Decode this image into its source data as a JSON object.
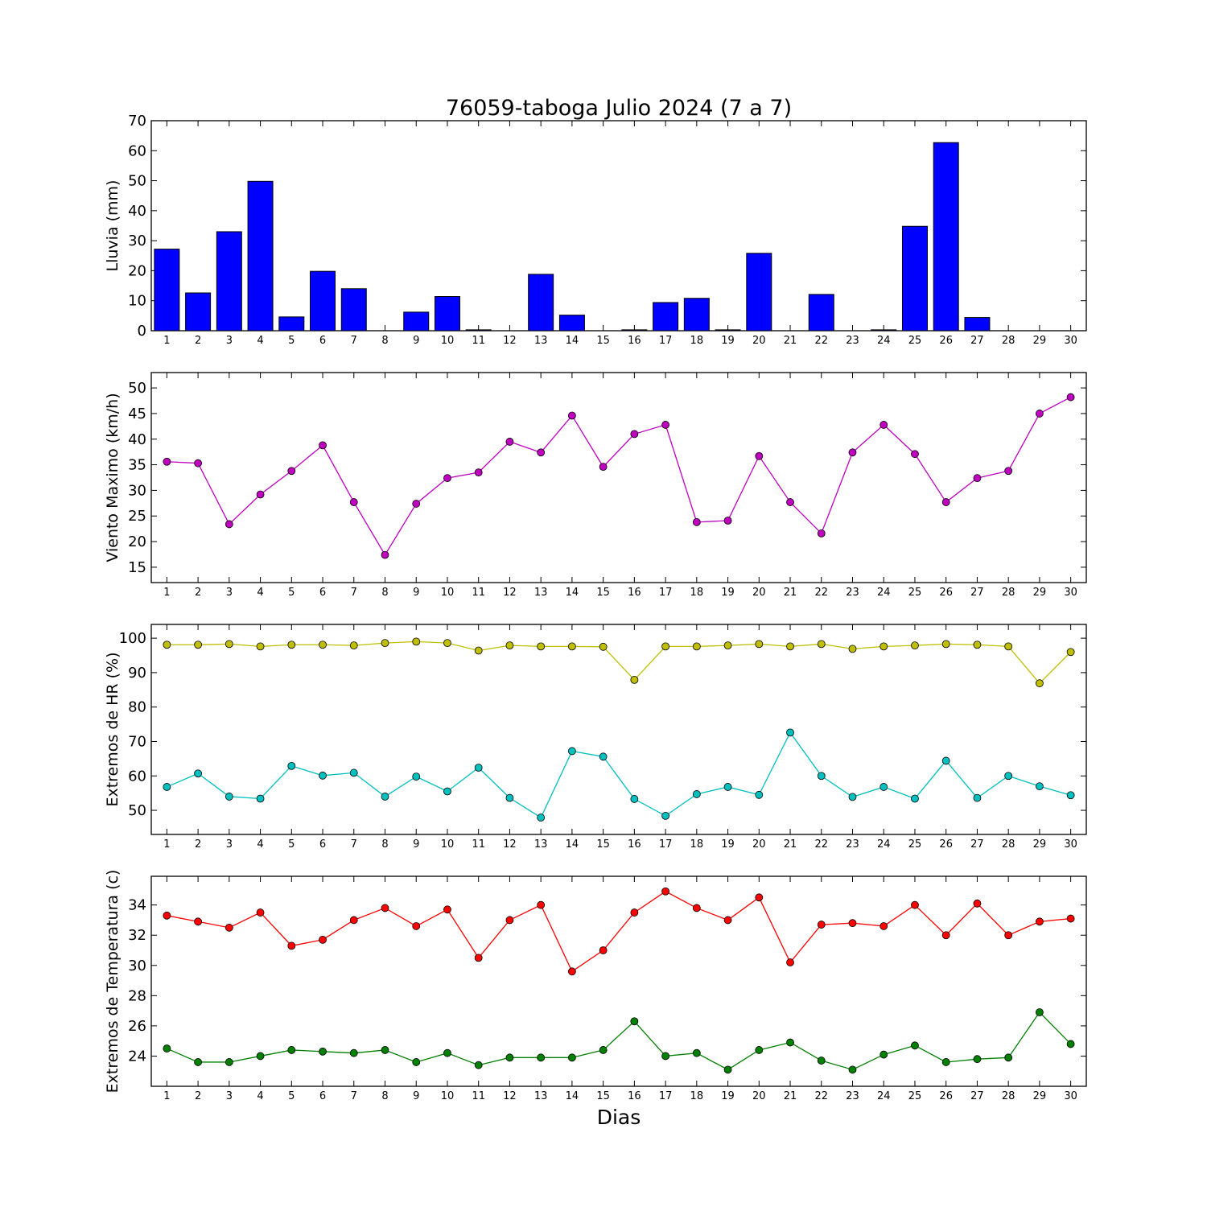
{
  "chart_data": [
    {
      "type": "bar",
      "title": "76059-taboga Julio 2024  (7 a 7)",
      "ylabel": "Lluvia (mm)",
      "xlabel": "",
      "categories": [
        "1",
        "2",
        "3",
        "4",
        "5",
        "6",
        "7",
        "8",
        "9",
        "10",
        "11",
        "12",
        "13",
        "14",
        "15",
        "16",
        "17",
        "18",
        "19",
        "20",
        "21",
        "22",
        "23",
        "24",
        "25",
        "26",
        "27",
        "28",
        "29",
        "30"
      ],
      "ylim": [
        0,
        70
      ],
      "yticks": [
        0,
        10,
        20,
        30,
        40,
        50,
        60,
        70
      ],
      "grid": false,
      "series": [
        {
          "values": [
            27.2,
            12.6,
            33.0,
            49.8,
            4.6,
            19.8,
            14.0,
            0,
            6.2,
            11.4,
            0.3,
            0,
            18.8,
            5.2,
            0,
            0.3,
            9.4,
            10.8,
            0.3,
            25.8,
            0,
            12.1,
            0,
            0.3,
            34.8,
            62.7,
            4.4,
            0,
            0,
            0
          ],
          "color": "#0000ff"
        }
      ]
    },
    {
      "type": "line",
      "title": "",
      "ylabel": "Viento Maximo (km/h)",
      "xlabel": "",
      "x": [
        1,
        2,
        3,
        4,
        5,
        6,
        7,
        8,
        9,
        10,
        11,
        12,
        13,
        14,
        15,
        16,
        17,
        18,
        19,
        20,
        21,
        22,
        23,
        24,
        25,
        26,
        27,
        28,
        29,
        30
      ],
      "ylim": [
        12,
        53
      ],
      "yticks": [
        15,
        20,
        25,
        30,
        35,
        40,
        45,
        50
      ],
      "grid": false,
      "series": [
        {
          "values": [
            35.6,
            35.3,
            23.4,
            29.2,
            33.8,
            38.8,
            27.7,
            17.4,
            27.4,
            32.4,
            33.5,
            39.5,
            37.4,
            44.6,
            34.6,
            41.0,
            42.8,
            23.8,
            24.1,
            36.7,
            27.7,
            21.6,
            37.4,
            42.8,
            37.1,
            27.7,
            32.4,
            33.8,
            45.0,
            48.2
          ],
          "color": "#bf00bf"
        }
      ]
    },
    {
      "type": "line",
      "title": "",
      "ylabel": "Extremos de HR (%)",
      "xlabel": "",
      "x": [
        1,
        2,
        3,
        4,
        5,
        6,
        7,
        8,
        9,
        10,
        11,
        12,
        13,
        14,
        15,
        16,
        17,
        18,
        19,
        20,
        21,
        22,
        23,
        24,
        25,
        26,
        27,
        28,
        29,
        30
      ],
      "ylim": [
        43,
        104
      ],
      "yticks": [
        50,
        60,
        70,
        80,
        90,
        100
      ],
      "grid": false,
      "series": [
        {
          "values": [
            98.1,
            98.1,
            98.3,
            97.6,
            98.1,
            98.1,
            97.9,
            98.6,
            99.0,
            98.6,
            96.4,
            97.9,
            97.6,
            97.6,
            97.5,
            87.9,
            97.6,
            97.6,
            97.9,
            98.3,
            97.6,
            98.3,
            96.9,
            97.6,
            97.9,
            98.3,
            98.1,
            97.6,
            86.9,
            96.0
          ],
          "color": "#bfbf00"
        },
        {
          "values": [
            56.8,
            60.7,
            54.0,
            53.4,
            62.9,
            60.1,
            60.9,
            54.0,
            59.8,
            55.5,
            62.4,
            53.6,
            47.9,
            67.2,
            65.6,
            53.3,
            48.4,
            54.7,
            56.8,
            54.5,
            72.6,
            60.0,
            53.9,
            56.8,
            53.4,
            64.4,
            53.6,
            60.0,
            57.0,
            54.4
          ],
          "color": "#00bfbf"
        }
      ]
    },
    {
      "type": "line",
      "title": "",
      "ylabel": "Extremos de Temperatura (c)",
      "xlabel": "Dias",
      "x": [
        1,
        2,
        3,
        4,
        5,
        6,
        7,
        8,
        9,
        10,
        11,
        12,
        13,
        14,
        15,
        16,
        17,
        18,
        19,
        20,
        21,
        22,
        23,
        24,
        25,
        26,
        27,
        28,
        29,
        30
      ],
      "ylim": [
        22,
        35.9
      ],
      "yticks": [
        24,
        26,
        28,
        30,
        32,
        34
      ],
      "grid": false,
      "series": [
        {
          "values": [
            33.3,
            32.9,
            32.5,
            33.5,
            31.3,
            31.7,
            33.0,
            33.8,
            32.6,
            33.7,
            30.5,
            33.0,
            34.0,
            29.6,
            31.0,
            33.5,
            34.9,
            33.8,
            33.0,
            34.5,
            30.2,
            32.7,
            32.8,
            32.6,
            34.0,
            32.0,
            34.1,
            32.0,
            32.9,
            33.1
          ],
          "color": "#ff0000"
        },
        {
          "values": [
            24.5,
            23.6,
            23.6,
            24.0,
            24.4,
            24.3,
            24.2,
            24.4,
            23.6,
            24.2,
            23.4,
            23.9,
            23.9,
            23.9,
            24.4,
            26.3,
            24.0,
            24.2,
            23.1,
            24.4,
            24.9,
            23.7,
            23.1,
            24.1,
            24.7,
            23.6,
            23.8,
            23.9,
            26.9,
            24.8
          ],
          "color": "#008000"
        }
      ]
    }
  ]
}
